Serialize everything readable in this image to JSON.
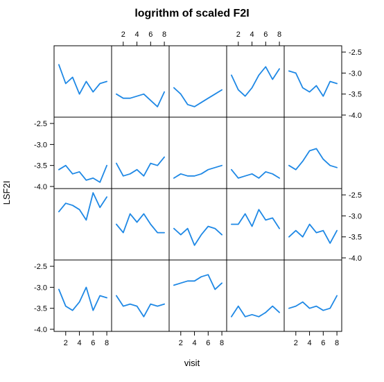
{
  "chart_data": {
    "type": "line",
    "layout": "lattice 5 columns x 4 rows",
    "title": "logrithm of scaled F2I",
    "xlabel": "visit",
    "ylabel": "LSF2I",
    "xlim": [
      0.3,
      8.7
    ],
    "ylim": [
      -4.05,
      -2.35
    ],
    "x_ticks": [
      2,
      4,
      6,
      8
    ],
    "y_ticks": [
      -4.0,
      -3.5,
      -3.0,
      -2.5
    ],
    "y_tick_labels": [
      "-4.0",
      "-3.5",
      "-3.0",
      "-2.5"
    ],
    "x_tick_labels": [
      "2",
      "4",
      "6",
      "8"
    ],
    "line_color": "#1e88e5",
    "panels": [
      {
        "row": 1,
        "col": 1,
        "x": [
          1,
          2,
          3,
          4,
          5,
          6,
          7,
          8
        ],
        "y": [
          -2.8,
          -3.25,
          -3.1,
          -3.5,
          -3.2,
          -3.45,
          -3.25,
          -3.2
        ]
      },
      {
        "row": 1,
        "col": 2,
        "x": [
          1,
          2,
          3,
          4,
          5,
          6,
          7,
          8
        ],
        "y": [
          -3.5,
          -3.6,
          -3.6,
          -3.55,
          -3.5,
          -3.65,
          -3.8,
          -3.45
        ]
      },
      {
        "row": 1,
        "col": 3,
        "x": [
          1,
          2,
          3,
          4,
          5,
          6,
          7,
          8
        ],
        "y": [
          -3.35,
          -3.5,
          -3.75,
          -3.8,
          -3.7,
          -3.6,
          -3.5,
          -3.4
        ]
      },
      {
        "row": 1,
        "col": 4,
        "x": [
          1,
          2,
          3,
          4,
          5,
          6,
          7,
          8
        ],
        "y": [
          -3.05,
          -3.4,
          -3.55,
          -3.35,
          -3.05,
          -2.85,
          -3.15,
          -2.9
        ]
      },
      {
        "row": 1,
        "col": 5,
        "x": [
          1,
          2,
          3,
          4,
          5,
          6,
          7,
          8
        ],
        "y": [
          -2.95,
          -3.0,
          -3.35,
          -3.45,
          -3.3,
          -3.55,
          -3.2,
          -3.25
        ]
      },
      {
        "row": 2,
        "col": 1,
        "x": [
          1,
          2,
          3,
          4,
          5,
          6,
          7,
          8
        ],
        "y": [
          -3.6,
          -3.5,
          -3.7,
          -3.65,
          -3.85,
          -3.8,
          -3.9,
          -3.5
        ]
      },
      {
        "row": 2,
        "col": 2,
        "x": [
          1,
          2,
          3,
          4,
          5,
          6,
          7,
          8
        ],
        "y": [
          -3.45,
          -3.75,
          -3.7,
          -3.6,
          -3.75,
          -3.45,
          -3.5,
          -3.3
        ]
      },
      {
        "row": 2,
        "col": 3,
        "x": [
          1,
          2,
          3,
          4,
          5,
          6,
          7,
          8
        ],
        "y": [
          -3.8,
          -3.7,
          -3.75,
          -3.75,
          -3.7,
          -3.6,
          -3.55,
          -3.5
        ]
      },
      {
        "row": 2,
        "col": 4,
        "x": [
          1,
          2,
          3,
          4,
          5,
          6,
          7,
          8
        ],
        "y": [
          -3.6,
          -3.8,
          -3.75,
          -3.7,
          -3.8,
          -3.65,
          -3.7,
          -3.8
        ]
      },
      {
        "row": 2,
        "col": 5,
        "x": [
          1,
          2,
          3,
          4,
          5,
          6,
          7,
          8
        ],
        "y": [
          -3.5,
          -3.6,
          -3.4,
          -3.15,
          -3.1,
          -3.35,
          -3.5,
          -3.55
        ]
      },
      {
        "row": 3,
        "col": 1,
        "x": [
          1,
          2,
          3,
          4,
          5,
          6,
          7,
          8
        ],
        "y": [
          -2.9,
          -2.7,
          -2.75,
          -2.85,
          -3.1,
          -2.45,
          -2.8,
          -2.55
        ]
      },
      {
        "row": 3,
        "col": 2,
        "x": [
          1,
          2,
          3,
          4,
          5,
          6,
          7,
          8
        ],
        "y": [
          -3.2,
          -3.4,
          -2.95,
          -3.15,
          -2.95,
          -3.2,
          -3.4,
          -3.4
        ]
      },
      {
        "row": 3,
        "col": 3,
        "x": [
          1,
          2,
          3,
          4,
          5,
          6,
          7,
          8
        ],
        "y": [
          -3.3,
          -3.45,
          -3.3,
          -3.7,
          -3.45,
          -3.25,
          -3.3,
          -3.45
        ]
      },
      {
        "row": 3,
        "col": 4,
        "x": [
          1,
          2,
          3,
          4,
          5,
          6,
          7,
          8
        ],
        "y": [
          -3.2,
          -3.2,
          -2.95,
          -3.25,
          -2.85,
          -3.1,
          -3.05,
          -3.3
        ]
      },
      {
        "row": 3,
        "col": 5,
        "x": [
          1,
          2,
          3,
          4,
          5,
          6,
          7,
          8
        ],
        "y": [
          -3.5,
          -3.35,
          -3.5,
          -3.2,
          -3.4,
          -3.35,
          -3.65,
          -3.35
        ]
      },
      {
        "row": 4,
        "col": 1,
        "x": [
          1,
          2,
          3,
          4,
          5,
          6,
          7,
          8
        ],
        "y": [
          -3.05,
          -3.45,
          -3.55,
          -3.35,
          -3.0,
          -3.55,
          -3.2,
          -3.25
        ]
      },
      {
        "row": 4,
        "col": 2,
        "x": [
          1,
          2,
          3,
          4,
          5,
          6,
          7,
          8
        ],
        "y": [
          -3.2,
          -3.45,
          -3.4,
          -3.45,
          -3.7,
          -3.4,
          -3.45,
          -3.4
        ]
      },
      {
        "row": 4,
        "col": 3,
        "x": [
          1,
          2,
          3,
          4,
          5,
          6,
          7,
          8
        ],
        "y": [
          -2.95,
          -2.9,
          -2.85,
          -2.85,
          -2.75,
          -2.7,
          -3.05,
          -2.9
        ]
      },
      {
        "row": 4,
        "col": 4,
        "x": [
          1,
          2,
          3,
          4,
          5,
          6,
          7,
          8
        ],
        "y": [
          -3.7,
          -3.45,
          -3.7,
          -3.65,
          -3.7,
          -3.6,
          -3.45,
          -3.6
        ]
      },
      {
        "row": 4,
        "col": 5,
        "x": [
          1,
          2,
          3,
          4,
          5,
          6,
          7,
          8
        ],
        "y": [
          -3.5,
          -3.45,
          -3.35,
          -3.5,
          -3.45,
          -3.55,
          -3.5,
          -3.2
        ]
      }
    ]
  }
}
